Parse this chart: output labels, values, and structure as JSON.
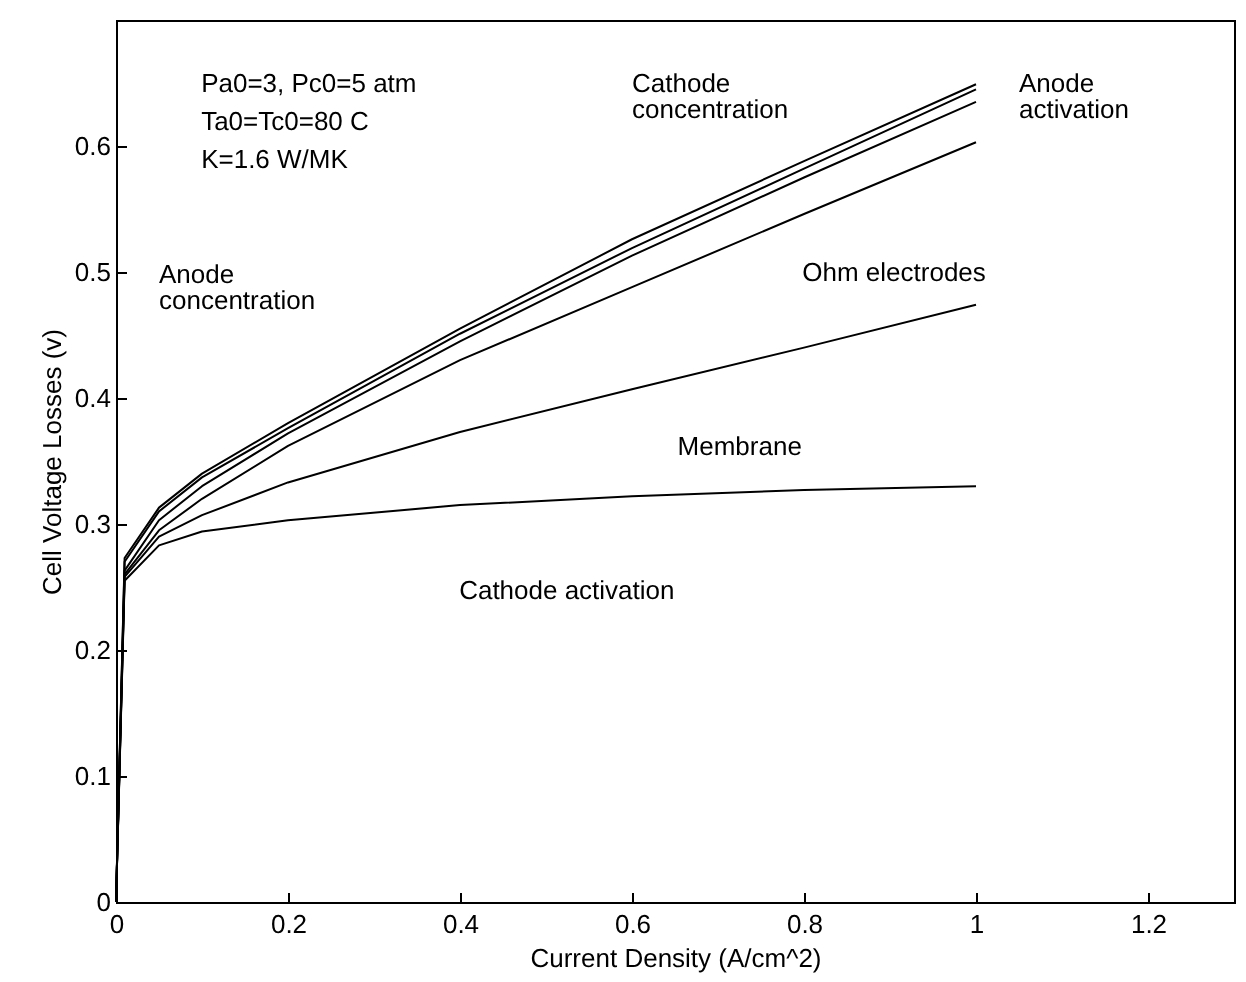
{
  "chart_data": {
    "type": "line",
    "xlabel": "Current Density (A/cm^2)",
    "ylabel": "Cell Voltage Losses (v)",
    "x": [
      0,
      0.01,
      0.05,
      0.1,
      0.2,
      0.4,
      0.6,
      0.8,
      1
    ],
    "series": [
      {
        "color": "#000000",
        "values": [
          0,
          0.255,
          0.283,
          0.294,
          0.303,
          0.315,
          0.322,
          0.327,
          0.33
        ]
      },
      {
        "color": "#000000",
        "values": [
          0,
          0.258,
          0.29,
          0.307,
          0.333,
          0.373,
          0.407,
          0.44,
          0.474
        ]
      },
      {
        "color": "#000000",
        "values": [
          0,
          0.26,
          0.295,
          0.32,
          0.362,
          0.43,
          0.488,
          0.546,
          0.603
        ]
      },
      {
        "color": "#000000",
        "values": [
          0,
          0.263,
          0.303,
          0.33,
          0.372,
          0.445,
          0.513,
          0.575,
          0.635
        ]
      },
      {
        "color": "#000000",
        "values": [
          0,
          0.27,
          0.31,
          0.337,
          0.376,
          0.451,
          0.519,
          0.582,
          0.645
        ]
      },
      {
        "color": "#000000",
        "values": [
          0,
          0.273,
          0.313,
          0.34,
          0.38,
          0.455,
          0.526,
          0.588,
          0.649
        ]
      }
    ],
    "annotations": [
      "Pa0=3, Pc0=5 atm",
      "Ta0=Tc0=80 C",
      "K=1.6 W/MK",
      "Anode\nconcentration",
      "Cathode\nconcentration",
      "Anode\nactivation",
      "Ohm electrodes",
      "Membrane",
      "Cathode activation"
    ],
    "xlim": [
      0,
      1.3
    ],
    "xticks": [
      0,
      0.2,
      0.4,
      0.6,
      0.8,
      1,
      1.2
    ],
    "ylim": [
      0,
      0.7
    ],
    "yticks": [
      0,
      0.1,
      0.2,
      0.3,
      0.4,
      0.5,
      0.6
    ],
    "grid": false,
    "line_style": "solid",
    "marker": "none"
  }
}
